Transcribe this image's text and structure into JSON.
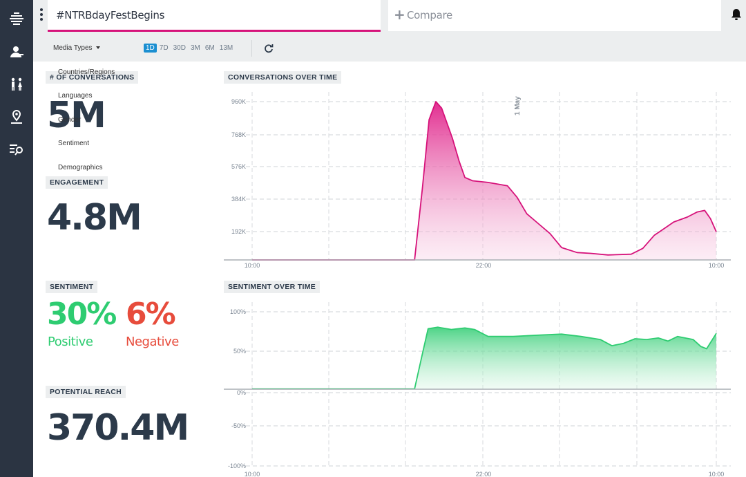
{
  "sidebar": {
    "icons": [
      "stream-icon",
      "users-icon",
      "people-icon",
      "location-icon",
      "search-list-icon"
    ]
  },
  "topbar": {
    "query": "#NTRBdayFestBegins",
    "compare_label": "Compare"
  },
  "filters": {
    "media_types_label": "Media Types",
    "ranges": [
      "1D",
      "7D",
      "30D",
      "3M",
      "6M",
      "13M"
    ],
    "active_range": "1D",
    "dropdown_items": [
      "Countries/Regions",
      "Languages",
      "Gender",
      "Sentiment",
      "Demographics"
    ]
  },
  "metrics": {
    "conversations": {
      "label": "# OF CONVERSATIONS",
      "value": "5M"
    },
    "engagement": {
      "label": "ENGAGEMENT",
      "value": "4.8M"
    },
    "sentiment": {
      "label": "SENTIMENT",
      "positive_value": "30%",
      "positive_label": "Positive",
      "negative_value": "6%",
      "negative_label": "Negative"
    },
    "reach": {
      "label": "POTENTIAL REACH",
      "value": "370.4M"
    }
  },
  "colors": {
    "accent": "#d6127a",
    "positive": "#2ecc71",
    "negative": "#e74c3c",
    "sidebar": "#2b3442"
  },
  "chart_data": [
    {
      "type": "area",
      "title": "CONVERSATIONS OVER TIME",
      "x_tick_labels": [
        "10:00",
        "22:00",
        "10:00"
      ],
      "y_tick_labels": [
        "192K",
        "384K",
        "576K",
        "768K",
        "960K"
      ],
      "annotation": "1 May",
      "ylim": [
        0,
        960000
      ],
      "xlim": [
        0,
        24
      ],
      "grid": true,
      "series": [
        {
          "color": "#d6127a",
          "points": [
            [
              0,
              0
            ],
            [
              4,
              0
            ],
            [
              8.4,
              0
            ],
            [
              8.8,
              430000
            ],
            [
              9.15,
              850000
            ],
            [
              9.5,
              960000
            ],
            [
              9.8,
              920000
            ],
            [
              10.35,
              740000
            ],
            [
              10.7,
              600000
            ],
            [
              11.0,
              500000
            ],
            [
              11.4,
              480000
            ],
            [
              12.2,
              470000
            ],
            [
              13.2,
              450000
            ],
            [
              13.7,
              380000
            ],
            [
              14.2,
              280000
            ],
            [
              14.8,
              220000
            ],
            [
              15.4,
              160000
            ],
            [
              16.0,
              75000
            ],
            [
              16.8,
              45000
            ],
            [
              17.5,
              40000
            ],
            [
              18.4,
              30000
            ],
            [
              19.6,
              35000
            ],
            [
              20.2,
              70000
            ],
            [
              20.8,
              150000
            ],
            [
              21.3,
              190000
            ],
            [
              21.8,
              230000
            ],
            [
              22.5,
              260000
            ],
            [
              23.0,
              290000
            ],
            [
              23.4,
              300000
            ],
            [
              23.7,
              250000
            ],
            [
              24.0,
              170000
            ]
          ]
        }
      ]
    },
    {
      "type": "area",
      "title": "SENTIMENT OVER TIME",
      "x_tick_labels": [
        "10:00",
        "22:00",
        "10:00"
      ],
      "y_tick_labels": [
        "100%",
        "50%",
        "0%",
        "-50%",
        "-100%"
      ],
      "ylim": [
        -100,
        100
      ],
      "xlim": [
        0,
        24
      ],
      "grid": true,
      "series": [
        {
          "color": "#2ecc71",
          "points": [
            [
              0,
              0
            ],
            [
              4,
              0
            ],
            [
              8.4,
              0
            ],
            [
              8.8,
              45
            ],
            [
              9.1,
              78
            ],
            [
              9.6,
              80
            ],
            [
              10.3,
              77
            ],
            [
              11.0,
              79
            ],
            [
              11.5,
              77
            ],
            [
              12.2,
              68
            ],
            [
              13.5,
              68
            ],
            [
              15.0,
              70
            ],
            [
              16.0,
              71
            ],
            [
              17.0,
              68
            ],
            [
              18.0,
              64
            ],
            [
              18.6,
              56
            ],
            [
              19.2,
              59
            ],
            [
              19.8,
              65
            ],
            [
              20.4,
              64
            ],
            [
              21.0,
              66
            ],
            [
              21.5,
              62
            ],
            [
              22.0,
              68
            ],
            [
              22.8,
              64
            ],
            [
              23.2,
              55
            ],
            [
              23.5,
              52
            ],
            [
              24.0,
              72
            ]
          ]
        }
      ]
    }
  ]
}
